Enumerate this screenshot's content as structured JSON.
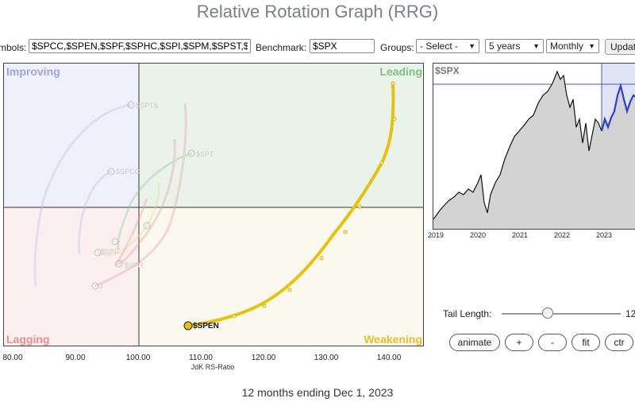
{
  "app_title": "Relative Rotation Graph (RRG)",
  "toolbar": {
    "symbols_label": "mbols:",
    "symbols_value": "$SPCC,$SPEN,$SPF,$SPHC,$SPI,$SPM,$SPST,$",
    "benchmark_label": "Benchmark:",
    "benchmark_value": "$SPX",
    "groups_label": "Groups:",
    "groups_selected": "- Select -",
    "period_selected": "5 years",
    "interval_selected": "Monthly",
    "update_label": "Updat"
  },
  "rrg": {
    "quadrants": {
      "improving": "Improving",
      "leading": "Leading",
      "lagging": "Lagging",
      "weakening": "Weakening"
    },
    "colors": {
      "improving_bg": "#f0f0fa",
      "leading_bg": "#eaf3ea",
      "lagging_bg": "#fbeff0",
      "weakening_bg": "#fbf8ee",
      "improving_text": "#9ea6dc",
      "leading_text": "#7fbf7f",
      "lagging_text": "#e58f8f",
      "weakening_text": "#e6c12c",
      "highlight_tail": "#e8c20a"
    },
    "x_axis_label": "JdK RS-Ratio",
    "x_ticks": [
      "80.00",
      "90.00",
      "100.00",
      "110.00",
      "120.00",
      "130.00",
      "140.00"
    ],
    "highlight_symbol": "$SPEN",
    "faded_labels": [
      "$SPTS",
      "$SPCC",
      "$SPT",
      "$SPF",
      "$SPR",
      "J"
    ]
  },
  "benchmark_chart": {
    "symbol": "$SPX",
    "years": [
      "2019",
      "2020",
      "2021",
      "2022",
      "2023"
    ]
  },
  "controls": {
    "tail_length_label": "Tail Length:",
    "tail_length_value": "12",
    "tail_length_fraction": 0.33,
    "animate": "animate",
    "plus": "+",
    "minus": "-",
    "fit": "fit",
    "ctr": "ctr"
  },
  "footer": "12 months ending Dec 1, 2023"
}
